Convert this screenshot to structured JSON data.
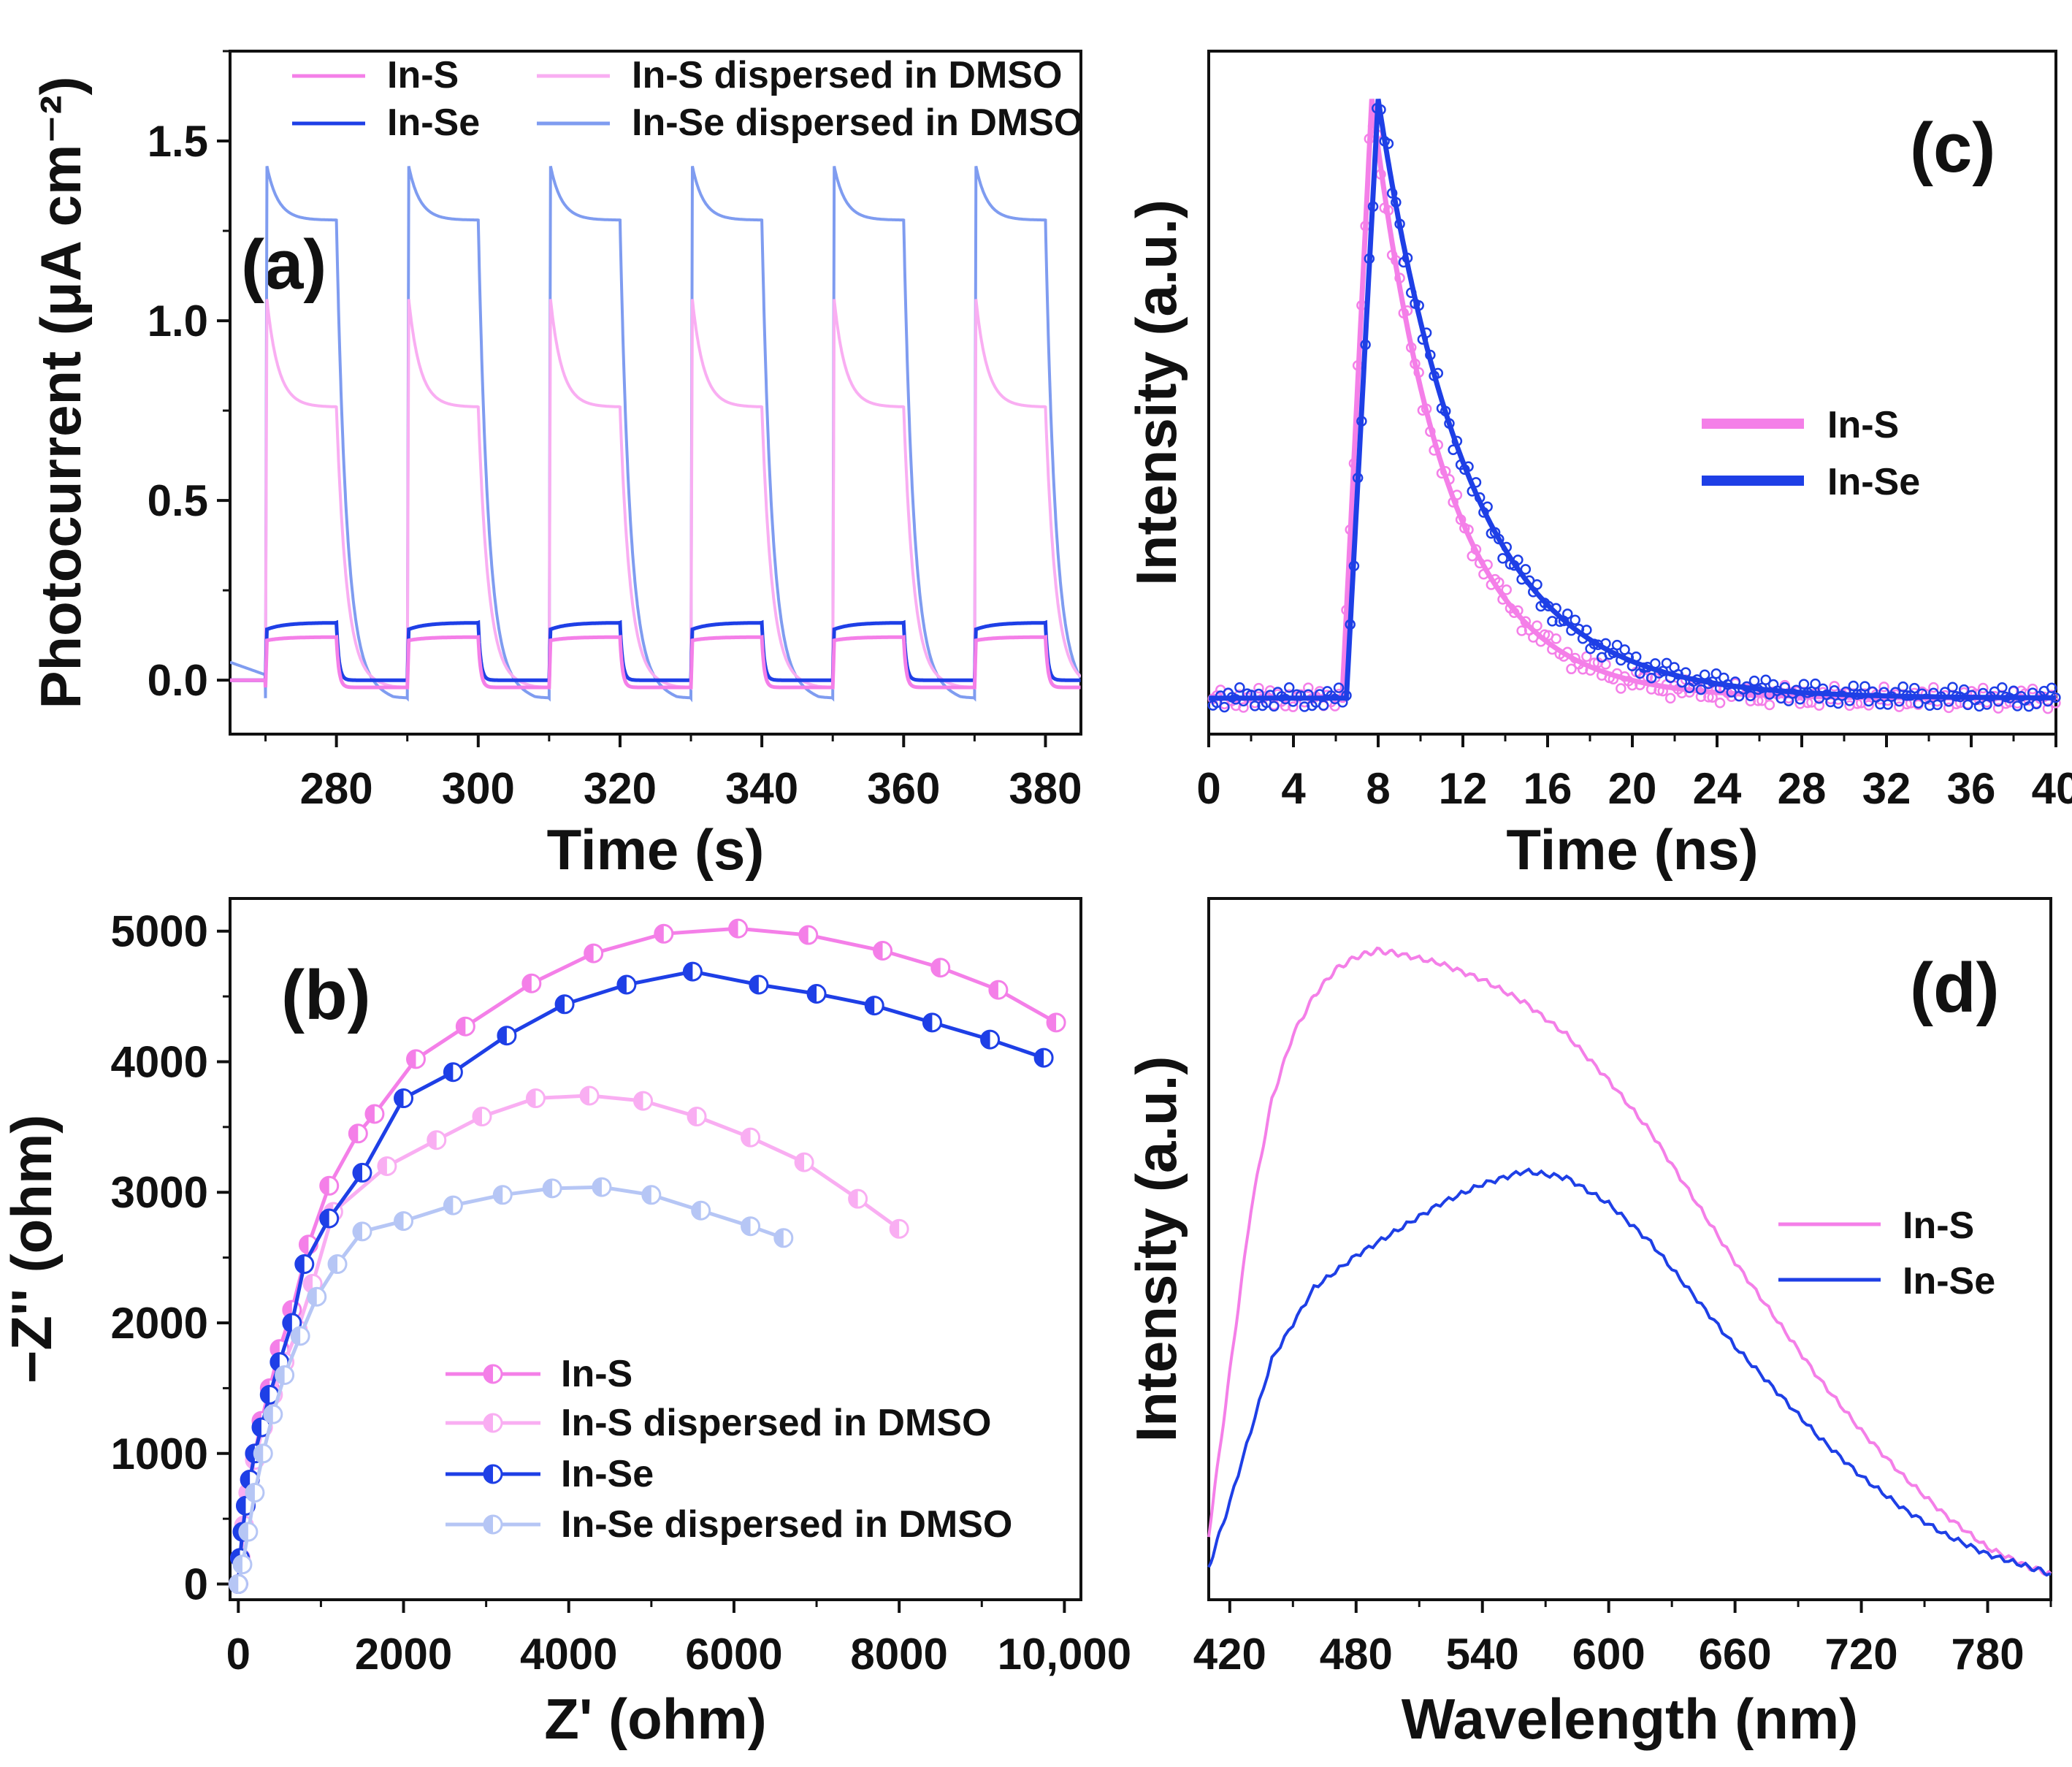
{
  "colors": {
    "pink": "#f47fe8",
    "light_pink": "#f9aef2",
    "blue": "#1e3fe6",
    "light_blue": "#7f9cf0",
    "lighter_blue": "#b6c6f5"
  },
  "chart_data": [
    {
      "id": "a",
      "type": "line",
      "panel_label": "(a)",
      "xlabel": "Time (s)",
      "ylabel": "Photocurrent (μA cm⁻²)",
      "xlim": [
        265,
        385
      ],
      "ylim": [
        -0.15,
        1.75
      ],
      "xticks": [
        "280",
        "300",
        "320",
        "340",
        "360",
        "380"
      ],
      "yticks": [
        "0.0",
        "0.5",
        "1.0",
        "1.5"
      ],
      "on_intervals": [
        [
          270,
          280
        ],
        [
          290,
          300
        ],
        [
          310,
          320
        ],
        [
          330,
          340
        ],
        [
          350,
          360
        ],
        [
          370,
          380
        ]
      ],
      "legend_location": "top",
      "series": [
        {
          "name": "In-S",
          "color": "#f47fe8",
          "on_peak": 0.11,
          "on_plateau": 0.12,
          "off_value": -0.02
        },
        {
          "name": "In-Se",
          "color": "#1e3fe6",
          "on_peak": 0.14,
          "on_plateau": 0.16,
          "off_value": 0.0
        },
        {
          "name": "In-S dispersed in DMSO",
          "color": "#f9aef2",
          "on_peak": 1.1,
          "on_plateau": 0.76,
          "off_value": -0.02
        },
        {
          "name": "In-Se dispersed in DMSO",
          "color": "#7f9cf0",
          "on_peak": 1.45,
          "on_plateau": 1.28,
          "off_value": -0.05
        }
      ]
    },
    {
      "id": "b",
      "type": "scatter",
      "panel_label": "(b)",
      "xlabel": "Z' (ohm)",
      "ylabel": "−Z'' (ohm)",
      "xlim": [
        -100,
        10200
      ],
      "ylim": [
        -120,
        5250
      ],
      "xticks": [
        "0",
        "2000",
        "4000",
        "6000",
        "8000",
        "10,000"
      ],
      "yticks": [
        "0",
        "1000",
        "2000",
        "3000",
        "4000",
        "5000"
      ],
      "legend_location": "bottom-center",
      "series": [
        {
          "name": "In-S",
          "color": "#f47fe8",
          "x": [
            0,
            20,
            50,
            90,
            140,
            200,
            280,
            380,
            500,
            650,
            850,
            1100,
            1450,
            1650,
            2150,
            2750,
            3550,
            4300,
            5150,
            6050,
            6900,
            7800,
            8500,
            9200,
            9900
          ],
          "y": [
            0,
            200,
            400,
            600,
            800,
            1000,
            1250,
            1500,
            1800,
            2100,
            2600,
            3050,
            3450,
            3600,
            4020,
            4270,
            4600,
            4830,
            4980,
            5020,
            4970,
            4850,
            4720,
            4550,
            4300
          ]
        },
        {
          "name": "In-S dispersed in DMSO",
          "color": "#f9aef2",
          "x": [
            0,
            30,
            70,
            120,
            200,
            300,
            420,
            560,
            720,
            900,
            1150,
            1800,
            2400,
            2950,
            3600,
            4250,
            4900,
            5550,
            6200,
            6850,
            7500,
            8000
          ],
          "y": [
            0,
            200,
            450,
            700,
            950,
            1200,
            1450,
            1700,
            1950,
            2300,
            2850,
            3200,
            3400,
            3580,
            3720,
            3740,
            3700,
            3580,
            3420,
            3230,
            2950,
            2720
          ]
        },
        {
          "name": "In-Se",
          "color": "#1e3fe6",
          "x": [
            0,
            20,
            50,
            90,
            140,
            200,
            280,
            380,
            500,
            650,
            800,
            1100,
            1500,
            2000,
            2600,
            3250,
            3950,
            4700,
            5500,
            6300,
            7000,
            7700,
            8400,
            9100,
            9750
          ],
          "y": [
            0,
            200,
            400,
            600,
            800,
            1000,
            1200,
            1450,
            1700,
            2000,
            2450,
            2800,
            3150,
            3720,
            3920,
            4200,
            4440,
            4590,
            4690,
            4590,
            4520,
            4430,
            4300,
            4170,
            4030
          ]
        },
        {
          "name": "In-Se dispersed in DMSO",
          "color": "#b6c6f5",
          "x": [
            0,
            50,
            120,
            200,
            300,
            420,
            560,
            750,
            950,
            1200,
            1500,
            2000,
            2600,
            3200,
            3800,
            4400,
            5000,
            5600,
            6200,
            6600
          ],
          "y": [
            0,
            150,
            400,
            700,
            1000,
            1300,
            1600,
            1900,
            2200,
            2450,
            2700,
            2780,
            2900,
            2980,
            3030,
            3040,
            2980,
            2860,
            2740,
            2650
          ]
        }
      ]
    },
    {
      "id": "c",
      "type": "line",
      "panel_label": "(c)",
      "xlabel": "Time (ns)",
      "ylabel": "Intensity (a.u.)",
      "xlim": [
        0,
        40
      ],
      "ylim": [
        -0.06,
        1.08
      ],
      "xticks": [
        "0",
        "4",
        "8",
        "12",
        "16",
        "20",
        "24",
        "28",
        "32",
        "36",
        "40"
      ],
      "yticks": [],
      "legend_location": "right",
      "series": [
        {
          "name": "In-S",
          "color": "#f47fe8",
          "rise_start": 6.3,
          "peak_time": 7.7,
          "peak": 1.0,
          "decay_tau": 3.5
        },
        {
          "name": "In-Se",
          "color": "#1e3fe6",
          "rise_start": 6.5,
          "peak_time": 8.0,
          "peak": 1.0,
          "decay_tau": 4.3
        }
      ]
    },
    {
      "id": "d",
      "type": "line",
      "panel_label": "(d)",
      "xlabel": "Wavelength (nm)",
      "ylabel": "Intensity (a.u.)",
      "xlim": [
        410,
        810
      ],
      "ylim": [
        0.0,
        1.08
      ],
      "xticks": [
        "420",
        "480",
        "540",
        "600",
        "660",
        "720",
        "780"
      ],
      "yticks": [],
      "legend_location": "right",
      "series": [
        {
          "name": "In-S",
          "color": "#f47fe8",
          "x": [
            410,
            420,
            430,
            440,
            450,
            460,
            470,
            480,
            490,
            500,
            520,
            540,
            560,
            580,
            600,
            620,
            640,
            660,
            680,
            700,
            720,
            740,
            760,
            780,
            800,
            810
          ],
          "y": [
            0.1,
            0.35,
            0.6,
            0.77,
            0.87,
            0.93,
            0.97,
            0.99,
            1.0,
            0.995,
            0.98,
            0.955,
            0.92,
            0.87,
            0.8,
            0.72,
            0.62,
            0.52,
            0.43,
            0.34,
            0.26,
            0.19,
            0.13,
            0.08,
            0.05,
            0.04
          ]
        },
        {
          "name": "In-Se",
          "color": "#1e3fe6",
          "x": [
            410,
            420,
            440,
            460,
            480,
            500,
            520,
            540,
            560,
            580,
            600,
            620,
            640,
            660,
            680,
            700,
            720,
            740,
            760,
            780,
            800,
            810
          ],
          "y": [
            0.05,
            0.15,
            0.37,
            0.48,
            0.53,
            0.57,
            0.61,
            0.64,
            0.66,
            0.65,
            0.61,
            0.55,
            0.47,
            0.39,
            0.32,
            0.25,
            0.19,
            0.14,
            0.1,
            0.07,
            0.05,
            0.04
          ]
        }
      ]
    }
  ]
}
